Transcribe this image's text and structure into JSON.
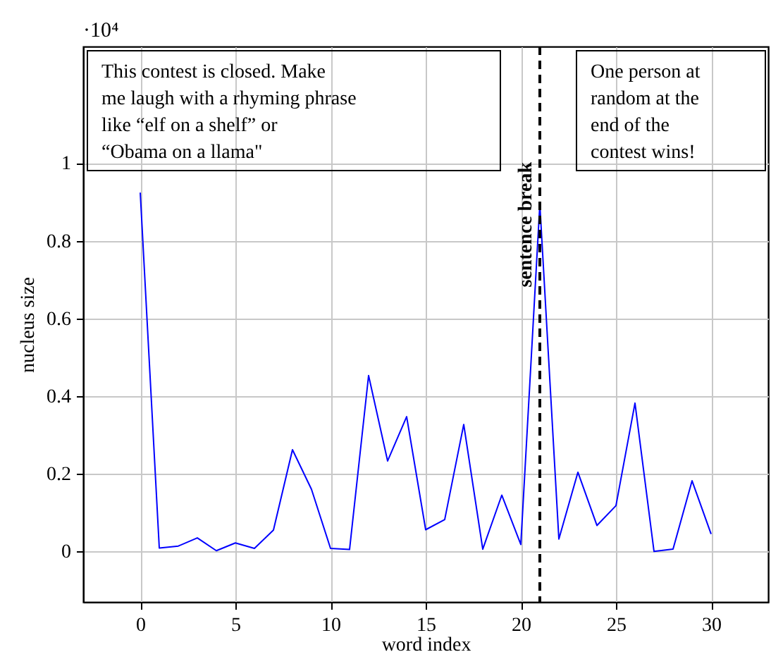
{
  "chart_data": {
    "type": "line",
    "xlabel": "word index",
    "ylabel": "nucleus size",
    "x": [
      0,
      1,
      2,
      3,
      4,
      5,
      6,
      7,
      8,
      9,
      10,
      11,
      12,
      13,
      14,
      15,
      16,
      17,
      18,
      19,
      20,
      21,
      22,
      23,
      24,
      25,
      26,
      27,
      28,
      29,
      30
    ],
    "series": [
      {
        "color": "#0000ff",
        "values": [
          0.924,
          0.009,
          0.014,
          0.035,
          0.002,
          0.022,
          0.008,
          0.055,
          0.262,
          0.16,
          0.008,
          0.005,
          0.453,
          0.233,
          0.347,
          0.056,
          0.082,
          0.327,
          0.006,
          0.145,
          0.018,
          0.894,
          0.032,
          0.204,
          0.067,
          0.118,
          0.382,
          0.0,
          0.006,
          0.182,
          0.045
        ]
      }
    ],
    "xlim": [
      -3,
      33
    ],
    "ylim": [
      -0.13,
      1.3
    ],
    "xticks": [
      0,
      5,
      10,
      15,
      20,
      25,
      30
    ],
    "yticks": [
      0,
      0.2,
      0.4,
      0.6,
      0.8,
      1
    ],
    "grid": true,
    "marker": "none",
    "line_style": "solid",
    "ref_lines": [
      {
        "axis": "x",
        "value": 21,
        "label": "sentence break",
        "color": "#000000",
        "line_style": "dashed"
      }
    ],
    "annotations": [
      "·10⁴",
      "This contest is closed. Make\nme laugh with a rhyming phrase\nlike “elf on a shelf” or\n“Obama on a llama\"",
      "One person at\nrandom at the\nend of the\ncontest wins!"
    ]
  }
}
